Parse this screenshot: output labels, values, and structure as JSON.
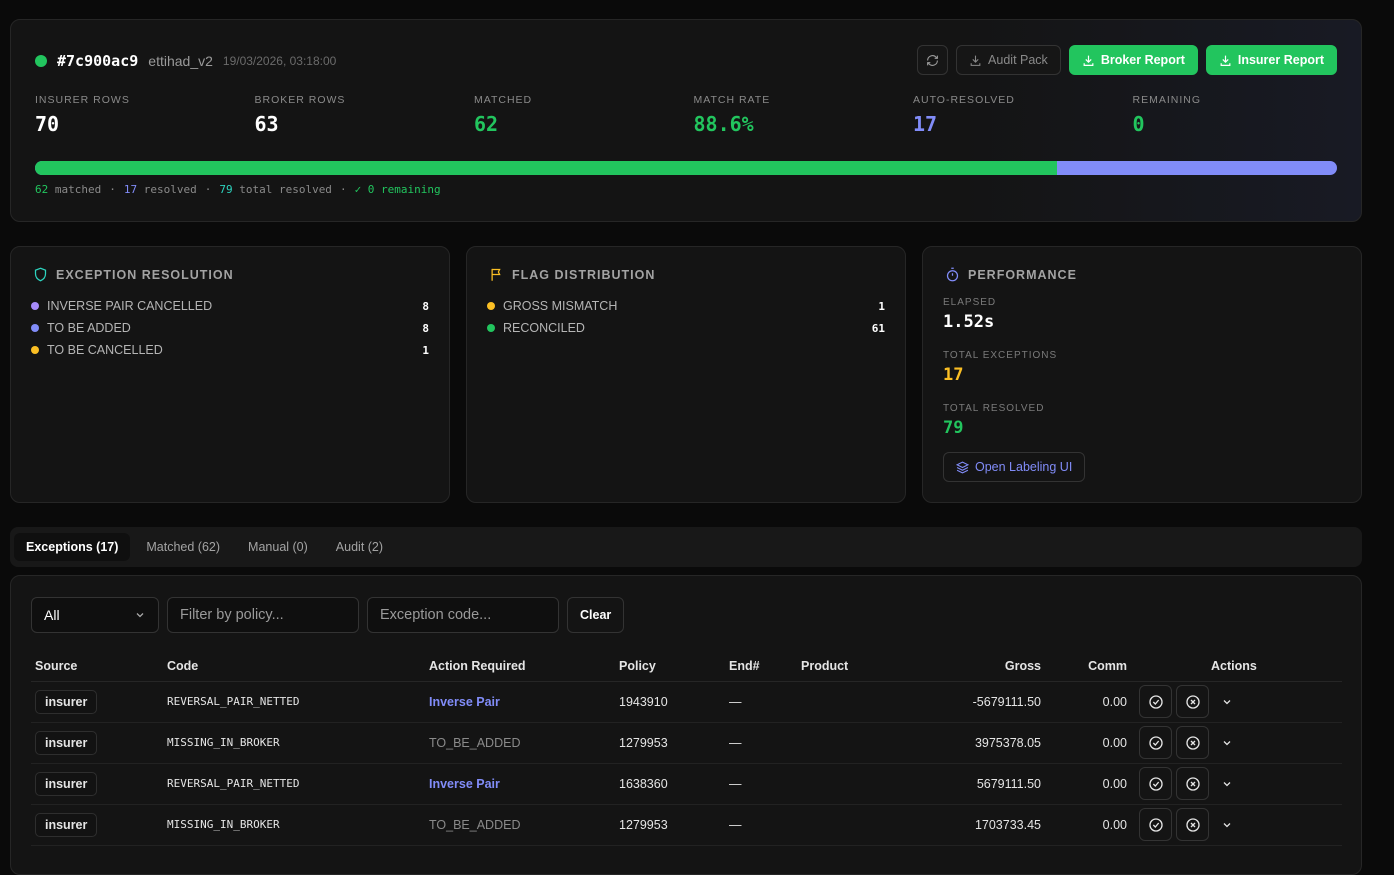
{
  "run": {
    "id": "#7c900ac9",
    "config": "ettihad_v2",
    "timestamp": "19/03/2026, 03:18:00",
    "status_color": "#22c55e"
  },
  "actions": {
    "refresh_icon": "refresh-icon",
    "audit_pack": "Audit Pack",
    "broker_report": "Broker Report",
    "insurer_report": "Insurer Report"
  },
  "stats": [
    {
      "label": "INSURER ROWS",
      "value": "70",
      "color": "#ffffff"
    },
    {
      "label": "BROKER ROWS",
      "value": "63",
      "color": "#ffffff"
    },
    {
      "label": "MATCHED",
      "value": "62",
      "color": "#22c55e"
    },
    {
      "label": "MATCH RATE",
      "value": "88.6%",
      "color": "#22c55e"
    },
    {
      "label": "AUTO-RESOLVED",
      "value": "17",
      "color": "#818cf8"
    },
    {
      "label": "REMAINING",
      "value": "0",
      "color": "#22c55e"
    }
  ],
  "progress": {
    "matched_fraction": 0.785,
    "matched_count": "62",
    "matched_label": "matched",
    "resolved_count": "17",
    "resolved_label": "resolved",
    "total_count": "79",
    "total_label": "total resolved",
    "remaining_text": "✓ 0 remaining",
    "sep": "·"
  },
  "exception_resolution": {
    "title": "EXCEPTION RESOLUTION",
    "items": [
      {
        "label": "INVERSE PAIR CANCELLED",
        "count": "8",
        "color": "#a78bfa"
      },
      {
        "label": "TO BE ADDED",
        "count": "8",
        "color": "#818cf8"
      },
      {
        "label": "TO BE CANCELLED",
        "count": "1",
        "color": "#fbbf24"
      }
    ]
  },
  "flag_distribution": {
    "title": "FLAG DISTRIBUTION",
    "items": [
      {
        "label": "GROSS MISMATCH",
        "count": "1",
        "color": "#fbbf24"
      },
      {
        "label": "RECONCILED",
        "count": "61",
        "color": "#22c55e"
      }
    ]
  },
  "performance": {
    "title": "PERFORMANCE",
    "elapsed_label": "ELAPSED",
    "elapsed_value": "1.52s",
    "exceptions_label": "TOTAL EXCEPTIONS",
    "exceptions_value": "17",
    "resolved_label": "TOTAL RESOLVED",
    "resolved_value": "79",
    "labeling_button": "Open Labeling UI"
  },
  "tabs": [
    {
      "label": "Exceptions (17)",
      "active": true
    },
    {
      "label": "Matched (62)",
      "active": false
    },
    {
      "label": "Manual (0)",
      "active": false
    },
    {
      "label": "Audit (2)",
      "active": false
    }
  ],
  "filters": {
    "source_selected": "All",
    "policy_placeholder": "Filter by policy...",
    "code_placeholder": "Exception code...",
    "clear_label": "Clear"
  },
  "table": {
    "headers": {
      "source": "Source",
      "code": "Code",
      "action": "Action Required",
      "policy": "Policy",
      "endorsement": "End#",
      "product": "Product",
      "gross": "Gross",
      "comm": "Comm",
      "actions": "Actions"
    },
    "rows": [
      {
        "source": "insurer",
        "code": "REVERSAL_PAIR_NETTED",
        "action": "Inverse Pair",
        "action_type": "inverse",
        "policy": "1943910",
        "endorsement": "—",
        "product": "",
        "gross": "-5679111.50",
        "comm": "0.00"
      },
      {
        "source": "insurer",
        "code": "MISSING_IN_BROKER",
        "action": "TO_BE_ADDED",
        "action_type": "tba",
        "policy": "1279953",
        "endorsement": "—",
        "product": "",
        "gross": "3975378.05",
        "comm": "0.00"
      },
      {
        "source": "insurer",
        "code": "REVERSAL_PAIR_NETTED",
        "action": "Inverse Pair",
        "action_type": "inverse",
        "policy": "1638360",
        "endorsement": "—",
        "product": "",
        "gross": "5679111.50",
        "comm": "0.00"
      },
      {
        "source": "insurer",
        "code": "MISSING_IN_BROKER",
        "action": "TO_BE_ADDED",
        "action_type": "tba",
        "policy": "1279953",
        "endorsement": "—",
        "product": "",
        "gross": "1703733.45",
        "comm": "0.00"
      }
    ]
  }
}
